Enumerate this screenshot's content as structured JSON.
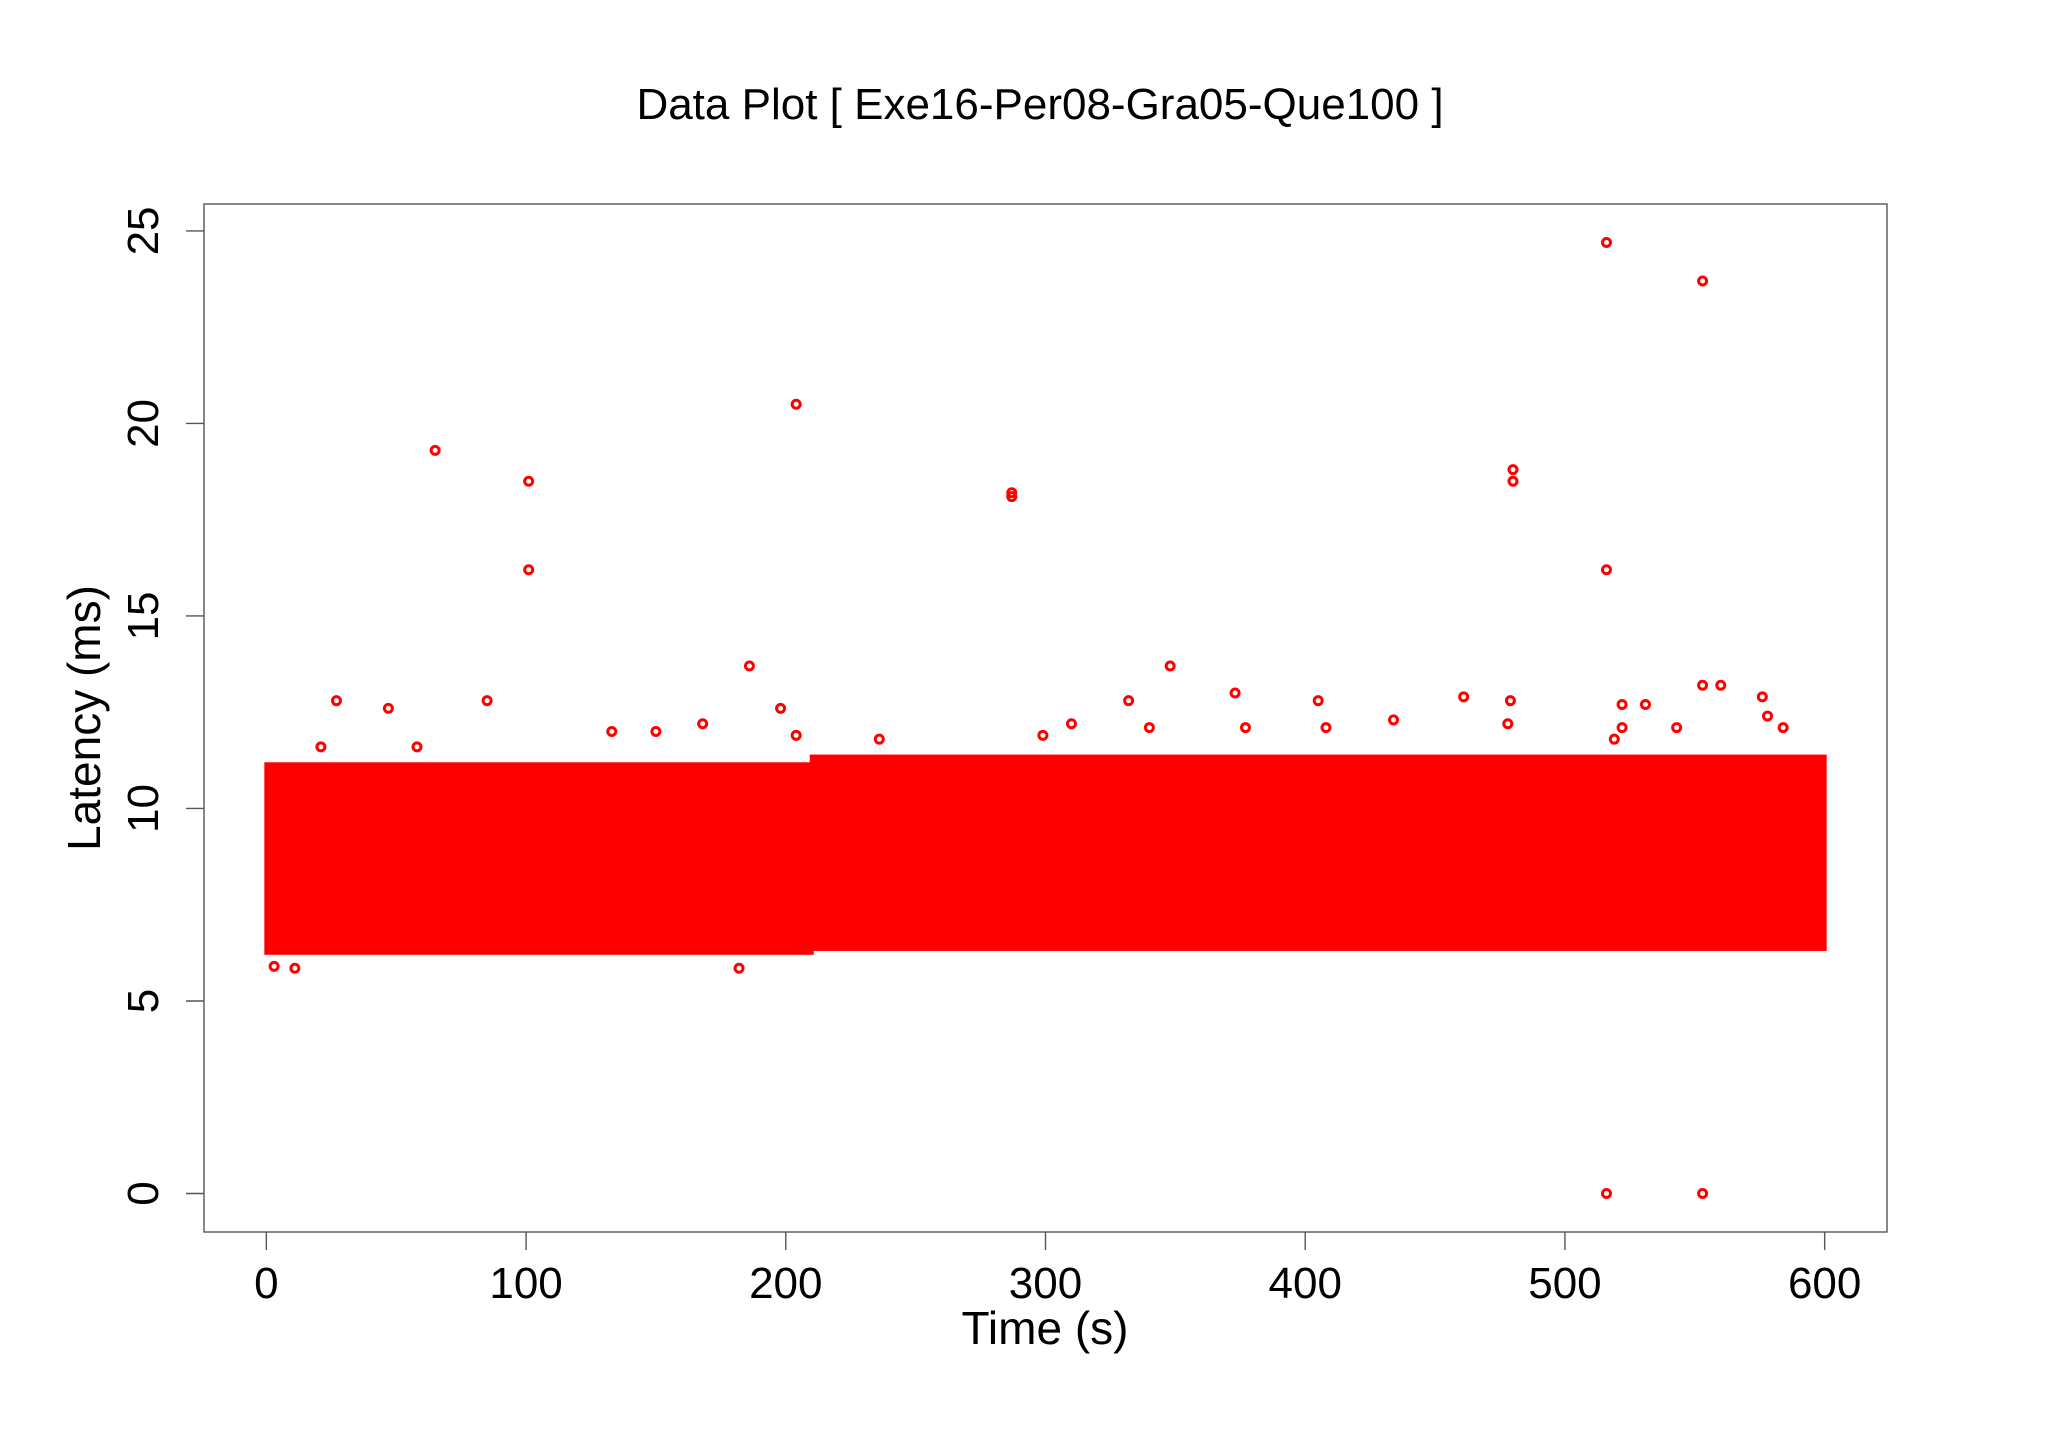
{
  "chart_data": {
    "type": "scatter",
    "title": "Data Plot [ Exe16-Per08-Gra05-Que100 ]",
    "xlabel": "Time (s)",
    "ylabel": "Latency (ms)",
    "xlim": [
      -24,
      624
    ],
    "ylim": [
      -1,
      25.7
    ],
    "xticks": [
      0,
      100,
      200,
      300,
      400,
      500,
      600
    ],
    "yticks": [
      0,
      5,
      10,
      15,
      20,
      25
    ],
    "grid": false,
    "legend": "none",
    "color": "#ff0000",
    "marker": "open-circle",
    "series": [
      {
        "dense_regions": [
          {
            "x": [
              0,
              210
            ],
            "y_low": 6.2,
            "y_high": 11.2
          },
          {
            "x": [
              210,
              600
            ],
            "y_low": 6.3,
            "y_high": 11.4
          }
        ],
        "points": [
          {
            "x": 3,
            "y": 5.9
          },
          {
            "x": 11,
            "y": 5.85
          },
          {
            "x": 21,
            "y": 11.6
          },
          {
            "x": 27,
            "y": 12.8
          },
          {
            "x": 47,
            "y": 12.6
          },
          {
            "x": 58,
            "y": 11.6
          },
          {
            "x": 65,
            "y": 19.3
          },
          {
            "x": 85,
            "y": 12.8
          },
          {
            "x": 101,
            "y": 18.5
          },
          {
            "x": 101,
            "y": 16.2
          },
          {
            "x": 133,
            "y": 12.0
          },
          {
            "x": 150,
            "y": 12.0
          },
          {
            "x": 168,
            "y": 12.2
          },
          {
            "x": 182,
            "y": 5.85
          },
          {
            "x": 186,
            "y": 13.7
          },
          {
            "x": 198,
            "y": 12.6
          },
          {
            "x": 204,
            "y": 20.5
          },
          {
            "x": 204,
            "y": 11.9
          },
          {
            "x": 236,
            "y": 11.8
          },
          {
            "x": 287,
            "y": 18.2
          },
          {
            "x": 287,
            "y": 18.1
          },
          {
            "x": 299,
            "y": 11.9
          },
          {
            "x": 310,
            "y": 12.2
          },
          {
            "x": 332,
            "y": 12.8
          },
          {
            "x": 340,
            "y": 12.1
          },
          {
            "x": 348,
            "y": 13.7
          },
          {
            "x": 373,
            "y": 13.0
          },
          {
            "x": 377,
            "y": 12.1
          },
          {
            "x": 405,
            "y": 12.8
          },
          {
            "x": 408,
            "y": 12.1
          },
          {
            "x": 434,
            "y": 12.3
          },
          {
            "x": 461,
            "y": 12.9
          },
          {
            "x": 479,
            "y": 12.8
          },
          {
            "x": 478,
            "y": 12.2
          },
          {
            "x": 480,
            "y": 18.8
          },
          {
            "x": 480,
            "y": 18.5
          },
          {
            "x": 516,
            "y": 24.7
          },
          {
            "x": 516,
            "y": 16.2
          },
          {
            "x": 516,
            "y": 0
          },
          {
            "x": 519,
            "y": 11.8
          },
          {
            "x": 522,
            "y": 12.7
          },
          {
            "x": 522,
            "y": 12.1
          },
          {
            "x": 531,
            "y": 12.7
          },
          {
            "x": 543,
            "y": 12.1
          },
          {
            "x": 553,
            "y": 23.7
          },
          {
            "x": 553,
            "y": 13.2
          },
          {
            "x": 553,
            "y": 0
          },
          {
            "x": 560,
            "y": 13.2
          },
          {
            "x": 576,
            "y": 12.9
          },
          {
            "x": 578,
            "y": 12.4
          },
          {
            "x": 584,
            "y": 12.1
          }
        ]
      }
    ]
  }
}
